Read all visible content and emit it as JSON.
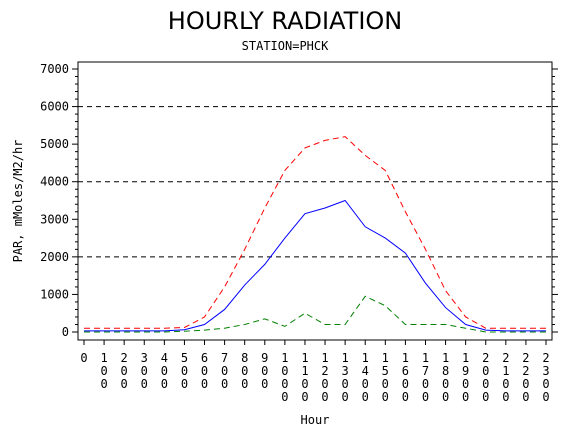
{
  "chart_data": {
    "type": "line",
    "title": "HOURLY RADIATION",
    "subtitle": "STATION=PHCK",
    "xlabel": "Hour",
    "ylabel": "PAR, mMoles/M2/hr",
    "xlim": [
      0,
      2300
    ],
    "ylim": [
      0,
      7000
    ],
    "x": [
      0,
      100,
      200,
      300,
      400,
      500,
      600,
      700,
      800,
      900,
      1000,
      1100,
      1200,
      1300,
      1400,
      1500,
      1600,
      1700,
      1800,
      1900,
      2000,
      2100,
      2200,
      2300
    ],
    "x_tick_labels": [
      "0",
      "100",
      "200",
      "300",
      "400",
      "500",
      "600",
      "700",
      "800",
      "900",
      "1000",
      "1100",
      "1200",
      "1300",
      "1400",
      "1500",
      "1600",
      "1700",
      "1800",
      "1900",
      "2000",
      "2100",
      "2200",
      "2300"
    ],
    "y_ticks": [
      0,
      1000,
      2000,
      3000,
      4000,
      5000,
      6000,
      7000
    ],
    "y_tick_labels": [
      "0",
      "1000",
      "2000",
      "3000",
      "4000",
      "5000",
      "6000",
      "7000"
    ],
    "grid_y": [
      2000,
      4000,
      6000
    ],
    "series": [
      {
        "style": "dashed",
        "color": "#ff0000",
        "values": [
          100,
          100,
          100,
          100,
          100,
          120,
          400,
          1200,
          2200,
          3300,
          4300,
          4900,
          5100,
          5200,
          4700,
          4300,
          3200,
          2200,
          1100,
          400,
          100,
          100,
          100,
          100
        ]
      },
      {
        "style": "solid",
        "color": "#0000ff",
        "values": [
          30,
          30,
          30,
          30,
          30,
          60,
          200,
          600,
          1250,
          1800,
          2500,
          3150,
          3300,
          3500,
          2800,
          2500,
          2100,
          1300,
          650,
          200,
          50,
          30,
          30,
          30
        ]
      },
      {
        "style": "dashed",
        "color": "#008000",
        "values": [
          0,
          0,
          0,
          0,
          0,
          20,
          50,
          100,
          200,
          350,
          150,
          500,
          200,
          200,
          950,
          700,
          200,
          200,
          200,
          100,
          0,
          0,
          0,
          0
        ]
      }
    ]
  }
}
